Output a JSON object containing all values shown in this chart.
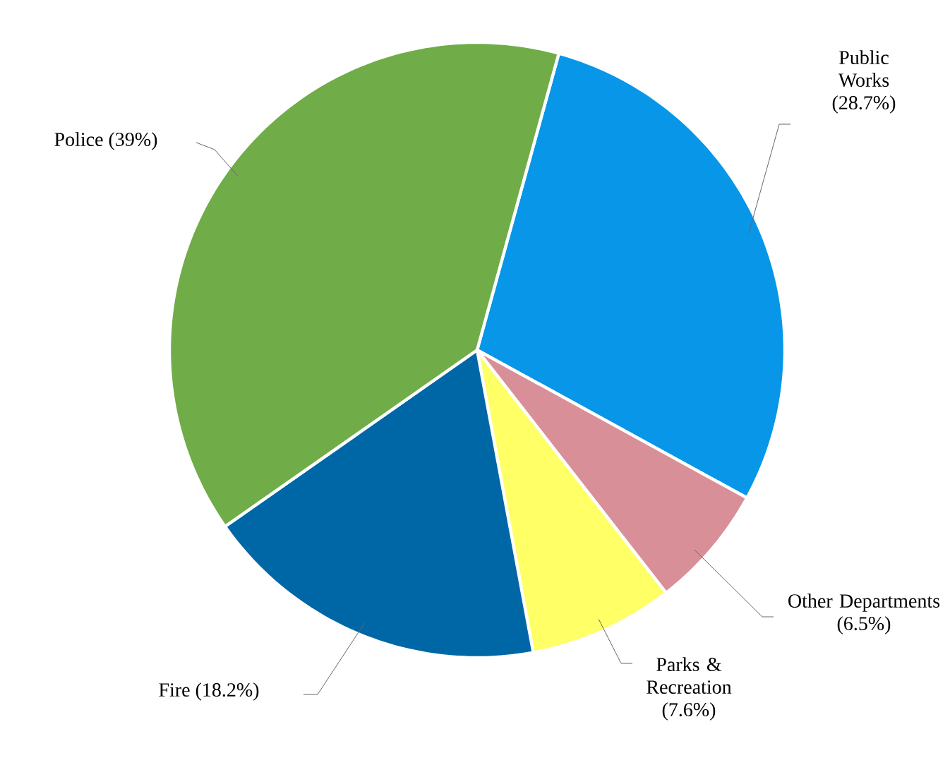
{
  "chart_data": {
    "type": "pie",
    "categories": [
      "Public Works",
      "Other Departments",
      "Parks & Recreation",
      "Fire",
      "Police"
    ],
    "values": [
      28.7,
      6.5,
      7.6,
      18.2,
      39
    ],
    "value_labels": [
      "(28.7%)",
      "(6.5%)",
      "(7.6%)",
      "(18.2%)",
      "(39%)"
    ],
    "colors": [
      "#0796e8",
      "#d98f98",
      "#ffff66",
      "#0067a7",
      "#70ac48"
    ]
  }
}
